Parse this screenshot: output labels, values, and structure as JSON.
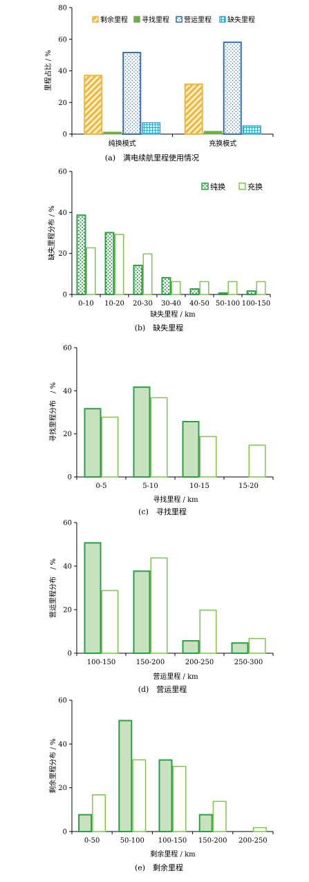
{
  "chart_data": [
    {
      "type": "bar",
      "categories": [
        "纯换模式",
        "充换模式"
      ],
      "series": [
        {
          "name": "剩余里程",
          "values": [
            37.5,
            32
          ],
          "color": "#f0b63c",
          "pattern": "hatch"
        },
        {
          "name": "寻找里程",
          "values": [
            1.5,
            2
          ],
          "color": "#70ad47",
          "pattern": "solid"
        },
        {
          "name": "营运里程",
          "values": [
            52,
            58.5
          ],
          "color": "#2e6fb5",
          "pattern": "dots"
        },
        {
          "name": "缺失里程",
          "values": [
            7.5,
            5.5
          ],
          "color": "#31a6d0",
          "pattern": "grid"
        }
      ],
      "ylabel": "里程占比 / %",
      "xlabel": "",
      "ylim": [
        0,
        80
      ],
      "yticks": [
        0,
        20,
        40,
        60,
        80
      ],
      "legend": "top",
      "caption": "(a)　满电续航里程使用情况"
    },
    {
      "type": "bar",
      "categories": [
        "0-10",
        "10-20",
        "20-30",
        "30-40",
        "40-50",
        "50-100",
        "100-150"
      ],
      "series": [
        {
          "name": "纯换",
          "values": [
            39,
            30.5,
            14.5,
            8.5,
            3,
            1,
            2
          ],
          "color": "#2e9d47",
          "pattern": "dots"
        },
        {
          "name": "充换",
          "values": [
            23,
            29.5,
            20,
            6.5,
            6.5,
            6.5,
            6.5
          ],
          "color": "#7ec44f",
          "pattern": "empty"
        }
      ],
      "ylabel": "缺失里程分布 / %",
      "xlabel": "缺失里程 / km",
      "ylim": [
        0,
        60
      ],
      "yticks": [
        0,
        20,
        40,
        60
      ],
      "legend": "top-right",
      "caption": "(b)　缺失里程"
    },
    {
      "type": "bar",
      "categories": [
        "0-5",
        "5-10",
        "10-15",
        "15-20"
      ],
      "series": [
        {
          "name": "",
          "values": [
            32,
            42,
            26,
            0
          ],
          "color": "#2e9d47",
          "pattern": "lightfill"
        },
        {
          "name": "",
          "values": [
            28,
            37,
            19,
            15
          ],
          "color": "#7ec44f",
          "pattern": "empty"
        }
      ],
      "ylabel": "寻找里程分布　/ %",
      "xlabel": "寻找里程 / km",
      "ylim": [
        0,
        60
      ],
      "yticks": [
        0,
        20,
        40,
        60
      ],
      "caption": "(c)　寻找里程"
    },
    {
      "type": "bar",
      "categories": [
        "100-150",
        "150-200",
        "200-250",
        "250-300"
      ],
      "series": [
        {
          "name": "",
          "values": [
            51,
            38,
            6,
            5
          ],
          "color": "#2e9d47",
          "pattern": "lightfill"
        },
        {
          "name": "",
          "values": [
            29,
            44,
            20,
            7
          ],
          "color": "#7ec44f",
          "pattern": "empty"
        }
      ],
      "ylabel": "营运里程分布　/ %",
      "xlabel": "营运里程 / km",
      "ylim": [
        0,
        60
      ],
      "yticks": [
        0,
        20,
        40,
        60
      ],
      "caption": "(d)　营运里程"
    },
    {
      "type": "bar",
      "categories": [
        "0-50",
        "50-100",
        "100-150",
        "150-200",
        "200-250"
      ],
      "series": [
        {
          "name": "",
          "values": [
            8,
            51,
            33,
            8,
            0
          ],
          "color": "#2e9d47",
          "pattern": "lightfill"
        },
        {
          "name": "",
          "values": [
            17,
            33,
            30,
            14,
            2
          ],
          "color": "#7ec44f",
          "pattern": "empty"
        }
      ],
      "ylabel": "剩余里程分布 / %",
      "xlabel": "剩余里程 / km",
      "ylim": [
        0,
        60
      ],
      "yticks": [
        0,
        20,
        40,
        60
      ],
      "caption": "(e)　剩余里程"
    }
  ]
}
